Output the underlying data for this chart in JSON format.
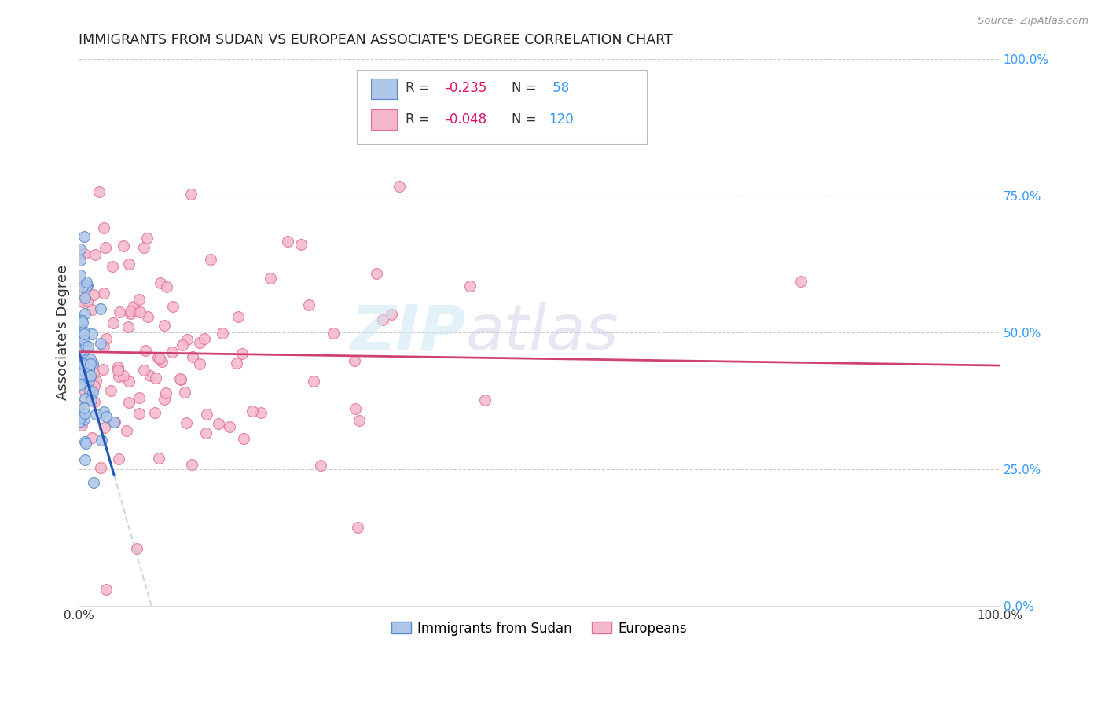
{
  "title": "IMMIGRANTS FROM SUDAN VS EUROPEAN ASSOCIATE'S DEGREE CORRELATION CHART",
  "source": "Source: ZipAtlas.com",
  "ylabel": "Associate's Degree",
  "series1_label": "Immigrants from Sudan",
  "series1_color": "#aec6e8",
  "series1_edge_color": "#5588cc",
  "series1_R": -0.235,
  "series1_N": 58,
  "series2_label": "Europeans",
  "series2_color": "#f5b8cb",
  "series2_edge_color": "#e07090",
  "series2_R": -0.048,
  "series2_N": 120,
  "reg1_color": "#2255bb",
  "reg2_color": "#d04070",
  "dash_color": "#aaccdd",
  "watermark_color": "#cde8f5",
  "background_color": "#ffffff",
  "scatter_size": 100,
  "right_yticklabels": [
    "0.0%",
    "25.0%",
    "50.0%",
    "75.0%",
    "100.0%"
  ],
  "right_ytickvals": [
    0.0,
    0.25,
    0.5,
    0.75,
    1.0
  ]
}
